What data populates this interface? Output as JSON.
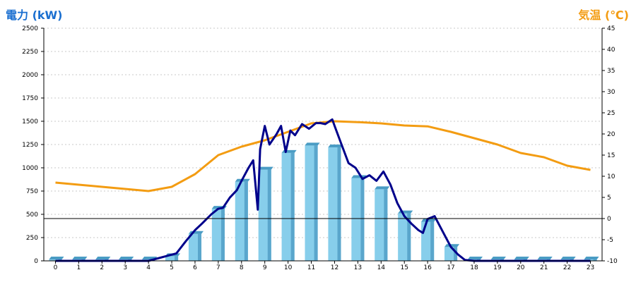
{
  "chart_data": {
    "type": "bar",
    "y_left_label": "電力 (kW)",
    "y_right_label": "気温 (℃)",
    "y_left_range": [
      0,
      2500
    ],
    "y_left_ticks": [
      0,
      250,
      500,
      750,
      1000,
      1250,
      1500,
      1750,
      2000,
      2250,
      2500
    ],
    "y_right_range": [
      -10,
      45
    ],
    "y_right_ticks": [
      -10,
      -5,
      0,
      5,
      10,
      15,
      20,
      25,
      30,
      35,
      40,
      45
    ],
    "categories": [
      "0",
      "1",
      "2",
      "3",
      "4",
      "5",
      "6",
      "7",
      "8",
      "9",
      "10",
      "11",
      "12",
      "13",
      "14",
      "15",
      "16",
      "17",
      "18",
      "19",
      "20",
      "21",
      "22",
      "23"
    ],
    "grid": true,
    "colors": {
      "bars": "#87ceeb",
      "power_line": "#00008b",
      "temp_line": "#f39c12"
    },
    "series": [
      {
        "type": "bar",
        "axis": "left",
        "values": [
          15,
          15,
          15,
          15,
          15,
          50,
          290,
          560,
          850,
          980,
          1160,
          1240,
          1220,
          890,
          770,
          510,
          420,
          150,
          15,
          15,
          15,
          15,
          15,
          15
        ]
      },
      {
        "type": "line",
        "axis": "left",
        "x": [
          0,
          1,
          2,
          3,
          4,
          4.9,
          5.2,
          5.6,
          6,
          6.3,
          6.7,
          7,
          7.2,
          7.5,
          7.8,
          8,
          8.3,
          8.5,
          8.7,
          8.8,
          9,
          9.2,
          9.5,
          9.7,
          9.9,
          10.1,
          10.3,
          10.6,
          10.9,
          11.2,
          11.4,
          11.6,
          11.9,
          12,
          12.3,
          12.6,
          12.9,
          13.2,
          13.5,
          13.8,
          14.1,
          14.4,
          14.7,
          15,
          15.3,
          15.6,
          15.8,
          16,
          16.3,
          16.7,
          17,
          17.3,
          17.6,
          18,
          19,
          20,
          21,
          22,
          23
        ],
        "values": [
          0,
          0,
          0,
          0,
          0,
          60,
          80,
          210,
          330,
          400,
          500,
          560,
          570,
          680,
          760,
          860,
          1000,
          1080,
          550,
          1200,
          1450,
          1250,
          1360,
          1450,
          1170,
          1400,
          1350,
          1470,
          1420,
          1480,
          1480,
          1470,
          1520,
          1450,
          1250,
          1050,
          1000,
          880,
          920,
          860,
          960,
          820,
          620,
          480,
          400,
          330,
          300,
          450,
          480,
          290,
          150,
          70,
          10,
          0,
          0,
          0,
          0,
          0,
          0
        ]
      },
      {
        "type": "line",
        "axis": "right",
        "x": [
          0,
          1,
          2,
          3,
          4,
          5,
          6,
          7,
          8,
          9,
          10,
          11,
          12,
          13,
          14,
          15,
          16,
          17,
          18,
          19,
          20,
          21,
          22,
          23
        ],
        "values": [
          8.5,
          8,
          7.5,
          7,
          6.5,
          7.5,
          10.5,
          15,
          17,
          18.5,
          20.5,
          22.5,
          23,
          22.8,
          22.5,
          22,
          21.8,
          20.5,
          19,
          17.5,
          15.5,
          14.5,
          12.5,
          11.5
        ]
      }
    ]
  }
}
